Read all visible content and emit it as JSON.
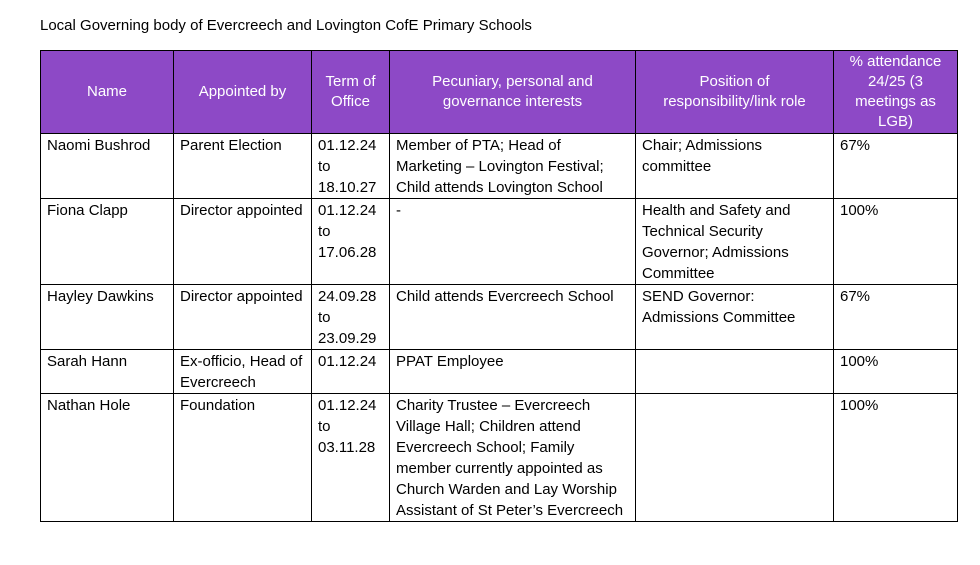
{
  "title": "Local Governing body of Evercreech and Lovington CofE Primary Schools",
  "headers": [
    "Name",
    "Appointed by",
    "Term of Office",
    "Pecuniary, personal and governance interests",
    "Position of responsibility/link role",
    "% attendance 24/25 (3 meetings as LGB)"
  ],
  "rows": [
    [
      "Naomi Bushrod",
      "Parent Election",
      "01.12.24 to 18.10.27",
      "Member of PTA;  Head of Marketing – Lovington Festival; Child attends Lovington School",
      "Chair; Admissions committee",
      "67%"
    ],
    [
      "Fiona Clapp",
      "Director appointed",
      "01.12.24 to 17.06.28",
      "-",
      "Health and Safety and Technical Security Governor; Admissions Committee",
      "100%"
    ],
    [
      "Hayley Dawkins",
      "Director appointed",
      "24.09.28 to 23.09.29",
      "Child attends Evercreech School",
      "SEND Governor: Admissions Committee",
      "67%"
    ],
    [
      "Sarah Hann",
      "Ex-officio, Head of Evercreech",
      "01.12.24",
      "PPAT Employee",
      "",
      "100%"
    ],
    [
      "Nathan Hole",
      "Foundation",
      "01.12.24 to 03.11.28",
      "Charity Trustee – Evercreech Village Hall; Children attend Evercreech School; Family member currently appointed as Church Warden and Lay Worship Assistant of St Peter’s Evercreech",
      "",
      "100%"
    ]
  ]
}
